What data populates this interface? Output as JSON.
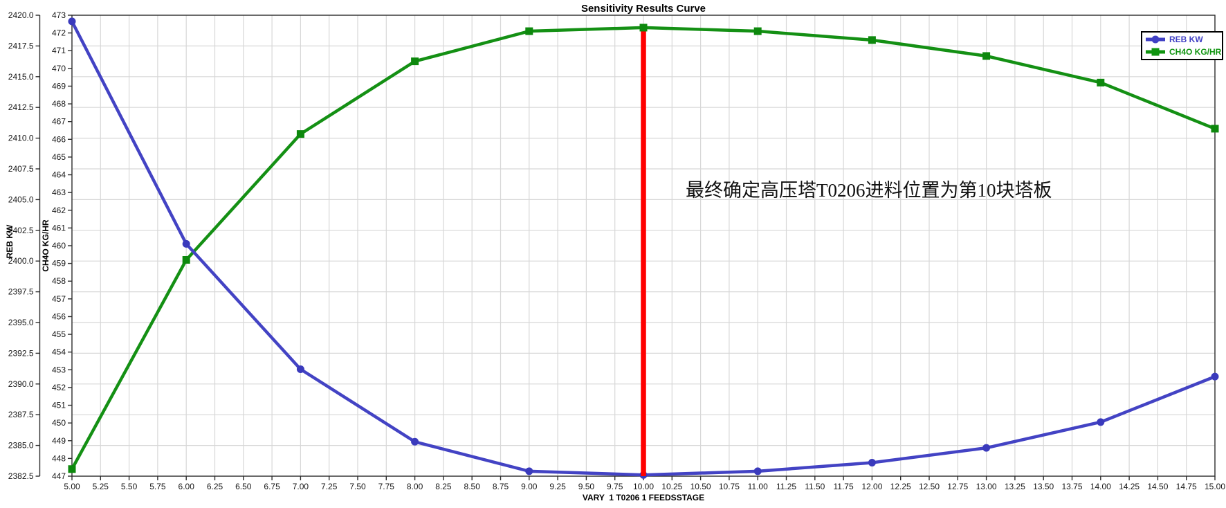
{
  "window": {
    "title": "Sensitivity Results Curve"
  },
  "annotation": {
    "text": "最终确定高压塔T0206进料位置为第10块塔板"
  },
  "legend": [
    {
      "label": "REB KW",
      "color": "#4040c4",
      "marker": "circle"
    },
    {
      "label": "CH4O KG/HR",
      "color": "#0f940f",
      "marker": "square"
    }
  ],
  "colors": {
    "reb_series": "#4343c4",
    "reb_marker": "#3a3abc",
    "ch4o_series": "#149014",
    "ch4o_marker": "#0d880d",
    "reference_line": "#ff0000",
    "gridline": "#d7d7d7",
    "axis": "#2e2e2e",
    "tick_text": "#161616"
  },
  "chart_data": {
    "type": "line",
    "title": "Sensitivity Results Curve",
    "x": [
      5,
      6,
      7,
      8,
      9,
      10,
      11,
      12,
      13,
      14,
      15
    ],
    "series": [
      {
        "name": "REB KW",
        "axis": "y_left_outer",
        "marker": "circle",
        "values": [
          2419.5,
          2401.4,
          2391.2,
          2385.3,
          2382.9,
          2382.6,
          2382.9,
          2383.6,
          2384.8,
          2386.9,
          2390.6
        ]
      },
      {
        "name": "CH4O KG/HR",
        "axis": "y_left_inner",
        "marker": "square",
        "values": [
          447.4,
          459.2,
          466.3,
          470.4,
          472.1,
          472.3,
          472.1,
          471.6,
          470.7,
          469.2,
          466.6
        ]
      }
    ],
    "axes": {
      "x": {
        "label": "VARY  1 T0206 1 FEEDSSTAGE",
        "min": 5.0,
        "max": 15.0,
        "tick_step": 0.25,
        "decimals": 2
      },
      "y_left_outer": {
        "label": "REB KW",
        "min": 2382.5,
        "max": 2420.0,
        "tick_step": 2.5,
        "decimals": 1
      },
      "y_left_inner": {
        "label": "CH4O KG/HR",
        "min": 447,
        "max": 473,
        "tick_step": 1,
        "decimals": 0
      }
    },
    "reference_line": {
      "x": 10.0,
      "note": "vertical red line at optimum feed stage"
    },
    "grid": true,
    "legend_position": "top-right"
  }
}
